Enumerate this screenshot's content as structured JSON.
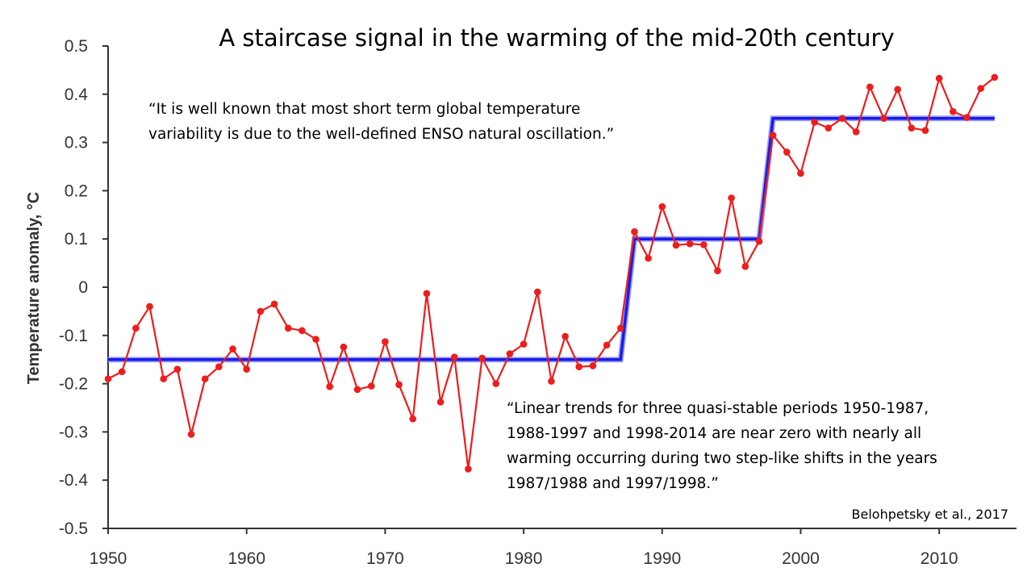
{
  "chart_data": {
    "type": "line",
    "title": "A staircase signal in the warming of the mid-20th century",
    "ylabel": "Temperature anomaly, °C",
    "xlabel": "",
    "xlim": [
      1950,
      2015
    ],
    "ylim": [
      -0.5,
      0.5
    ],
    "x_ticks": [
      "1950",
      "1960",
      "1970",
      "1980",
      "1990",
      "2000",
      "2010"
    ],
    "y_ticks": [
      "0.5",
      "0.4",
      "0.3",
      "0.2",
      "0.1",
      "0",
      "-0.1",
      "-0.2",
      "-0.3",
      "-0.4",
      "-0.5"
    ],
    "grid": false,
    "series": [
      {
        "color": "#ee1c1c",
        "x": [
          1950,
          1951,
          1952,
          1953,
          1954,
          1955,
          1956,
          1957,
          1958,
          1959,
          1960,
          1961,
          1962,
          1963,
          1964,
          1965,
          1966,
          1967,
          1968,
          1969,
          1970,
          1971,
          1972,
          1973,
          1974,
          1975,
          1976,
          1977,
          1978,
          1979,
          1980,
          1981,
          1982,
          1983,
          1984,
          1985,
          1986,
          1987,
          1988,
          1989,
          1990,
          1991,
          1992,
          1993,
          1994,
          1995,
          1996,
          1997,
          1998,
          1999,
          2000,
          2001,
          2002,
          2003,
          2004,
          2005,
          2006,
          2007,
          2008,
          2009,
          2010,
          2011,
          2012,
          2013,
          2014
        ],
        "y": [
          -0.19,
          -0.175,
          -0.085,
          -0.04,
          -0.19,
          -0.17,
          -0.305,
          -0.19,
          -0.165,
          -0.128,
          -0.17,
          -0.05,
          -0.035,
          -0.085,
          -0.09,
          -0.108,
          -0.206,
          -0.124,
          -0.212,
          -0.205,
          -0.113,
          -0.202,
          -0.273,
          -0.013,
          -0.238,
          -0.145,
          -0.377,
          -0.147,
          -0.2,
          -0.138,
          -0.118,
          -0.01,
          -0.195,
          -0.102,
          -0.165,
          -0.163,
          -0.12,
          -0.085,
          0.115,
          0.06,
          0.167,
          0.087,
          0.09,
          0.088,
          0.034,
          0.185,
          0.043,
          0.095,
          0.315,
          0.28,
          0.236,
          0.342,
          0.33,
          0.35,
          0.322,
          0.415,
          0.35,
          0.41,
          0.33,
          0.325,
          0.433,
          0.364,
          0.352,
          0.412,
          0.435
        ]
      },
      {
        "color": "#1a1aee",
        "x": [
          1950,
          1987,
          1988,
          1997,
          1998,
          2014
        ],
        "y": [
          -0.15,
          -0.15,
          0.1,
          0.1,
          0.35,
          0.35
        ]
      }
    ],
    "annotations": [
      "“It is well known that most short term global temperature",
      "variability is due to the well-defined ENSO natural oscillation.”",
      "“Linear trends for three quasi-stable periods 1950-1987,",
      "1988-1997 and 1998-2014 are near zero with nearly all",
      "warming occurring during two step-like shifts in the years",
      "1987/1988 and 1997/1998.”",
      "Belohpetsky et al., 2017"
    ]
  }
}
